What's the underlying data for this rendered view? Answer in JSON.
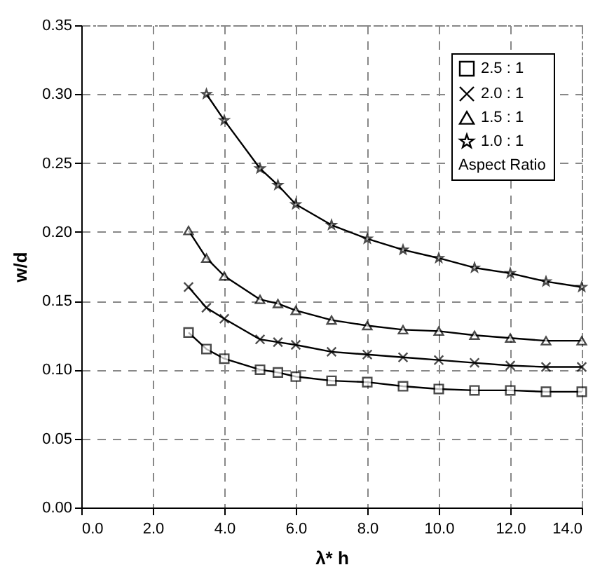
{
  "chart_data": {
    "type": "line",
    "xlabel": "λ* h",
    "ylabel": "w/d",
    "legend_title": "Aspect Ratio",
    "legend": "top right",
    "grid": true,
    "line_style": "solid",
    "xlim": [
      0,
      14
    ],
    "xticks": [
      {
        "value": 0,
        "label": "0.0"
      },
      {
        "value": 2,
        "label": "2.0"
      },
      {
        "value": 4,
        "label": "4.0"
      },
      {
        "value": 6,
        "label": "6.0"
      },
      {
        "value": 8,
        "label": "8.0"
      },
      {
        "value": 10,
        "label": "10.0"
      },
      {
        "value": 12,
        "label": "12.0"
      },
      {
        "value": 14,
        "label": "14.0"
      }
    ],
    "ylim": [
      0,
      0.35
    ],
    "yticks": [
      {
        "value": 0,
        "label": "0.00"
      },
      {
        "value": 0.05,
        "label": "0.05"
      },
      {
        "value": 0.1,
        "label": "0.10"
      },
      {
        "value": 0.15,
        "label": "0.15"
      },
      {
        "value": 0.2,
        "label": "0.20"
      },
      {
        "value": 0.25,
        "label": "0.25"
      },
      {
        "value": 0.3,
        "label": "0.30"
      },
      {
        "value": 0.35,
        "label": "0.35"
      }
    ],
    "series": [
      {
        "name": "2.5 : 1",
        "color": "#000000",
        "marker": "square",
        "x": [
          3,
          3.5,
          4,
          5,
          5.5,
          6,
          7,
          8,
          9,
          10,
          11,
          12,
          13,
          14
        ],
        "values": [
          0.127,
          0.115,
          0.108,
          0.1,
          0.098,
          0.095,
          0.092,
          0.091,
          0.088,
          0.086,
          0.085,
          0.085,
          0.084,
          0.084
        ]
      },
      {
        "name": "2.0 : 1",
        "color": "#000000",
        "marker": "cross",
        "x": [
          3,
          3.5,
          4,
          5,
          5.5,
          6,
          7,
          8,
          9,
          10,
          11,
          12,
          13,
          14
        ],
        "values": [
          0.16,
          0.145,
          0.137,
          0.122,
          0.12,
          0.118,
          0.113,
          0.111,
          0.109,
          0.107,
          0.105,
          0.103,
          0.102,
          0.102
        ]
      },
      {
        "name": "1.5 : 1",
        "color": "#000000",
        "marker": "triangle",
        "x": [
          3,
          3.5,
          4,
          5,
          5.5,
          6,
          7,
          8,
          9,
          10,
          11,
          12,
          13,
          14
        ],
        "values": [
          0.201,
          0.181,
          0.168,
          0.151,
          0.148,
          0.143,
          0.136,
          0.132,
          0.129,
          0.128,
          0.125,
          0.123,
          0.121,
          0.121
        ]
      },
      {
        "name": "1.0 : 1",
        "color": "#000000",
        "marker": "star",
        "x": [
          3.5,
          4,
          5,
          5.5,
          6,
          7,
          8,
          9,
          10,
          11,
          12,
          13,
          14
        ],
        "values": [
          0.3,
          0.281,
          0.246,
          0.234,
          0.22,
          0.205,
          0.195,
          0.187,
          0.181,
          0.174,
          0.17,
          0.164,
          0.16
        ]
      }
    ]
  }
}
